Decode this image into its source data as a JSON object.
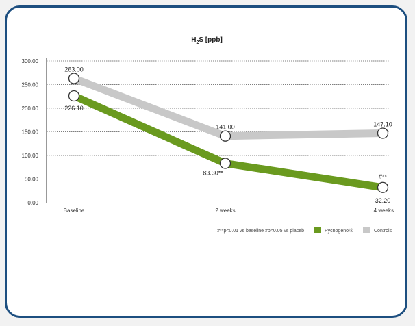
{
  "chart_data": {
    "type": "line",
    "title": "H2S [ppb]",
    "title_parts": {
      "main": "H",
      "sub": "2",
      "rest": "S [ppb]"
    },
    "xlabel": "",
    "ylabel": "",
    "categories": [
      "Baseline",
      "2 weeks",
      "4 weeks"
    ],
    "ylim": [
      0,
      300
    ],
    "yticks": [
      "0.00",
      "50.00",
      "100.00",
      "150.00",
      "200.00",
      "250.00",
      "300.00"
    ],
    "grid": true,
    "legend_position": "bottom-right",
    "series": [
      {
        "name": "Controls",
        "values": [
          263.0,
          141.0,
          147.1
        ],
        "labels": [
          "263.00",
          "141.00",
          "147.10"
        ],
        "color": "#c8c8c8"
      },
      {
        "name": "Pycnogenol®",
        "values": [
          226.1,
          83.3,
          32.2
        ],
        "labels": [
          "226.10",
          "83.30**",
          "32.20"
        ],
        "color": "#6a9a1f"
      }
    ],
    "annotations": [
      "#**"
    ],
    "footnote": "#**p<0.01 vs baseline #p<0.05 vs placeb"
  }
}
